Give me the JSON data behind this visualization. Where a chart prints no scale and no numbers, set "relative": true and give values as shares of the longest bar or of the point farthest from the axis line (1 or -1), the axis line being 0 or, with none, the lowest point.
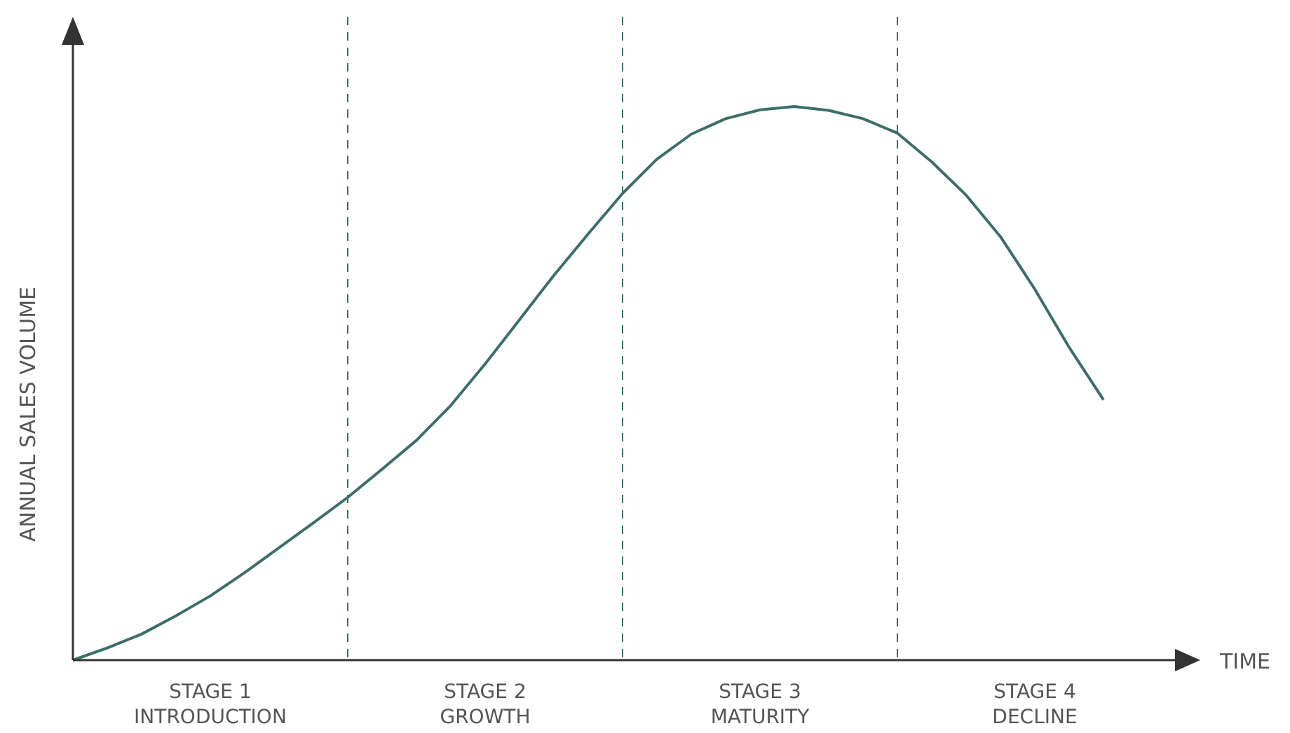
{
  "chart_data": {
    "type": "line",
    "relative": true,
    "xlabel": "TIME",
    "ylabel": "ANNUAL SALES VOLUME",
    "tick_labels": "x",
    "grid": "x",
    "categories": [
      null,
      null,
      null,
      null,
      "STAGE 1\nINTRODUCTION",
      null,
      null,
      null,
      null,
      null,
      null,
      null,
      "STAGE 2\nGROWTH",
      null,
      null,
      null,
      null,
      null,
      null,
      null,
      "STAGE 3\nMATURITY",
      null,
      null,
      null,
      null,
      null,
      null,
      null,
      "STAGE 4\nDECLINE",
      null,
      null,
      null,
      null
    ],
    "series": [
      {
        "color": "#3d6e69",
        "values": [
          0,
          0.022,
          0.047,
          0.08,
          0.116,
          0.158,
          0.203,
          0.248,
          0.294,
          0.345,
          0.397,
          0.46,
          0.535,
          0.615,
          0.695,
          0.77,
          0.843,
          0.905,
          0.95,
          0.978,
          0.994,
          1,
          0.993,
          0.978,
          0.952,
          0.9,
          0.84,
          0.765,
          0.67,
          0.565,
          0.47,
          null,
          null
        ]
      }
    ]
  }
}
